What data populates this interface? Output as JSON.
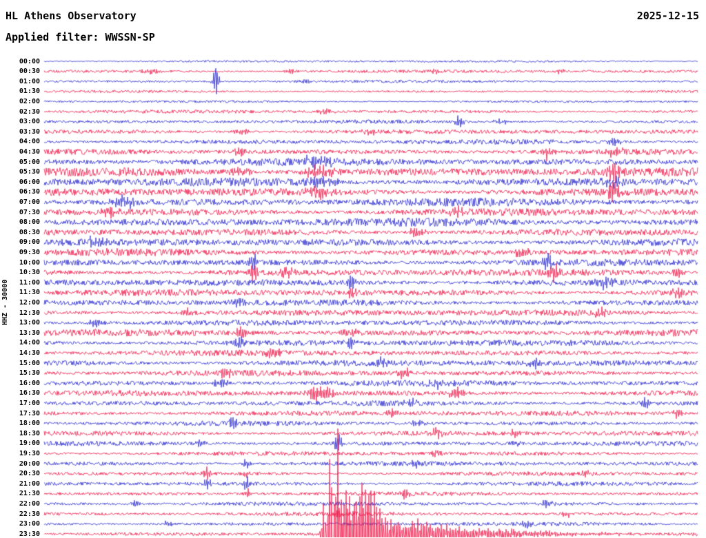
{
  "header": {
    "title": "HL Athens Observatory",
    "date": "2025-12-15",
    "filter": "Applied filter: WWSSN-SP"
  },
  "y_axis_label": "HHZ - 30000",
  "chart_data": {
    "type": "line",
    "subtype": "helicorder-seismogram",
    "channel": "HHZ",
    "scale": "30000",
    "row_interval_minutes": 30,
    "grid": false,
    "legend": "none",
    "background": "#ffffff",
    "colors": {
      "blue": "#2727cf",
      "red": "#ef1548"
    },
    "notes": "48 alternating blue/red half-hour traces; calibration spike on 01:00 trace near 26% width; large clipped earthquake with decaying coda on 23:30 trace starting near 43% width",
    "traces": [
      {
        "time": "00:00",
        "color": "blue",
        "noise": 1.8,
        "e": []
      },
      {
        "time": "00:30",
        "color": "red",
        "noise": 2.6,
        "e": [
          {
            "x": 0.165,
            "a": 5,
            "w": 0.01
          },
          {
            "x": 0.38,
            "a": 5,
            "w": 0.008
          },
          {
            "x": 0.6,
            "a": 4,
            "w": 0.008
          },
          {
            "x": 0.79,
            "a": 4,
            "w": 0.006
          }
        ]
      },
      {
        "time": "01:00",
        "color": "blue",
        "noise": 2.2,
        "e": [
          {
            "x": 0.263,
            "a": 42,
            "w": 0.003
          },
          {
            "x": 0.4,
            "a": 4,
            "w": 0.01
          }
        ]
      },
      {
        "time": "01:30",
        "color": "red",
        "noise": 2.0,
        "e": []
      },
      {
        "time": "02:00",
        "color": "blue",
        "noise": 2.0,
        "e": []
      },
      {
        "time": "02:30",
        "color": "red",
        "noise": 2.8,
        "e": [
          {
            "x": 0.43,
            "a": 5,
            "w": 0.01
          }
        ]
      },
      {
        "time": "03:00",
        "color": "blue",
        "noise": 3.0,
        "e": [
          {
            "x": 0.635,
            "a": 13,
            "w": 0.004
          },
          {
            "x": 0.7,
            "a": 4,
            "w": 0.01
          }
        ]
      },
      {
        "time": "03:30",
        "color": "red",
        "noise": 3.6,
        "e": [
          {
            "x": 0.3,
            "a": 6,
            "w": 0.01
          },
          {
            "x": 0.5,
            "a": 5,
            "w": 0.01
          }
        ]
      },
      {
        "time": "04:00",
        "color": "blue",
        "noise": 4.0,
        "e": [
          {
            "x": 0.87,
            "a": 6,
            "w": 0.008
          }
        ]
      },
      {
        "time": "04:30",
        "color": "red",
        "noise": 4.5,
        "e": [
          {
            "x": 0.3,
            "a": 8,
            "w": 0.01
          },
          {
            "x": 0.77,
            "a": 12,
            "w": 0.006
          },
          {
            "x": 0.87,
            "a": 8,
            "w": 0.01
          }
        ]
      },
      {
        "time": "05:00",
        "color": "blue",
        "noise": 6.0,
        "e": [
          {
            "x": 0.42,
            "a": 8,
            "w": 0.02
          }
        ]
      },
      {
        "time": "05:30",
        "color": "red",
        "noise": 7.0,
        "e": [
          {
            "x": 0.3,
            "a": 10,
            "w": 0.01
          },
          {
            "x": 0.42,
            "a": 12,
            "w": 0.015
          },
          {
            "x": 0.87,
            "a": 16,
            "w": 0.008
          }
        ]
      },
      {
        "time": "06:00",
        "color": "blue",
        "noise": 7.0,
        "e": [
          {
            "x": 0.42,
            "a": 10,
            "w": 0.02
          },
          {
            "x": 0.87,
            "a": 10,
            "w": 0.01
          }
        ]
      },
      {
        "time": "06:30",
        "color": "red",
        "noise": 6.5,
        "e": [
          {
            "x": 0.42,
            "a": 14,
            "w": 0.01
          },
          {
            "x": 0.87,
            "a": 20,
            "w": 0.006
          }
        ]
      },
      {
        "time": "07:00",
        "color": "blue",
        "noise": 6.5,
        "e": [
          {
            "x": 0.12,
            "a": 10,
            "w": 0.015
          }
        ]
      },
      {
        "time": "07:30",
        "color": "red",
        "noise": 6.0,
        "e": [
          {
            "x": 0.1,
            "a": 8,
            "w": 0.01
          },
          {
            "x": 0.63,
            "a": 8,
            "w": 0.01
          }
        ]
      },
      {
        "time": "08:00",
        "color": "blue",
        "noise": 6.5,
        "e": []
      },
      {
        "time": "08:30",
        "color": "red",
        "noise": 5.5,
        "e": [
          {
            "x": 0.57,
            "a": 8,
            "w": 0.01
          }
        ]
      },
      {
        "time": "09:00",
        "color": "blue",
        "noise": 6.0,
        "e": [
          {
            "x": 0.08,
            "a": 8,
            "w": 0.01
          }
        ]
      },
      {
        "time": "09:30",
        "color": "red",
        "noise": 5.5,
        "e": [
          {
            "x": 0.1,
            "a": 8,
            "w": 0.008
          },
          {
            "x": 0.73,
            "a": 10,
            "w": 0.008
          }
        ]
      },
      {
        "time": "10:00",
        "color": "blue",
        "noise": 5.5,
        "e": [
          {
            "x": 0.32,
            "a": 12,
            "w": 0.006
          },
          {
            "x": 0.77,
            "a": 14,
            "w": 0.006
          }
        ]
      },
      {
        "time": "10:30",
        "color": "red",
        "noise": 5.5,
        "e": [
          {
            "x": 0.32,
            "a": 16,
            "w": 0.005
          },
          {
            "x": 0.37,
            "a": 10,
            "w": 0.008
          },
          {
            "x": 0.78,
            "a": 12,
            "w": 0.008
          },
          {
            "x": 0.97,
            "a": 10,
            "w": 0.006
          }
        ]
      },
      {
        "time": "11:00",
        "color": "blue",
        "noise": 5.5,
        "e": [
          {
            "x": 0.47,
            "a": 14,
            "w": 0.004
          },
          {
            "x": 0.86,
            "a": 8,
            "w": 0.01
          }
        ]
      },
      {
        "time": "11:30",
        "color": "red",
        "noise": 5.5,
        "e": [
          {
            "x": 0.47,
            "a": 12,
            "w": 0.005
          },
          {
            "x": 0.97,
            "a": 14,
            "w": 0.005
          }
        ]
      },
      {
        "time": "12:00",
        "color": "blue",
        "noise": 5.0,
        "e": [
          {
            "x": 0.3,
            "a": 8,
            "w": 0.008
          }
        ]
      },
      {
        "time": "12:30",
        "color": "red",
        "noise": 5.0,
        "e": [
          {
            "x": 0.22,
            "a": 8,
            "w": 0.008
          },
          {
            "x": 0.85,
            "a": 10,
            "w": 0.006
          }
        ]
      },
      {
        "time": "13:00",
        "color": "blue",
        "noise": 4.8,
        "e": [
          {
            "x": 0.08,
            "a": 8,
            "w": 0.008
          }
        ]
      },
      {
        "time": "13:30",
        "color": "red",
        "noise": 5.5,
        "e": [
          {
            "x": 0.3,
            "a": 12,
            "w": 0.006
          },
          {
            "x": 0.47,
            "a": 8,
            "w": 0.01
          }
        ]
      },
      {
        "time": "14:00",
        "color": "blue",
        "noise": 5.0,
        "e": [
          {
            "x": 0.3,
            "a": 10,
            "w": 0.006
          },
          {
            "x": 0.47,
            "a": 12,
            "w": 0.005
          }
        ]
      },
      {
        "time": "14:30",
        "color": "red",
        "noise": 4.8,
        "e": [
          {
            "x": 0.35,
            "a": 8,
            "w": 0.008
          }
        ]
      },
      {
        "time": "15:00",
        "color": "blue",
        "noise": 5.0,
        "e": [
          {
            "x": 0.52,
            "a": 10,
            "w": 0.006
          },
          {
            "x": 0.75,
            "a": 8,
            "w": 0.008
          }
        ]
      },
      {
        "time": "15:30",
        "color": "red",
        "noise": 4.6,
        "e": [
          {
            "x": 0.28,
            "a": 10,
            "w": 0.006
          },
          {
            "x": 0.55,
            "a": 8,
            "w": 0.008
          }
        ]
      },
      {
        "time": "16:00",
        "color": "blue",
        "noise": 4.6,
        "e": [
          {
            "x": 0.27,
            "a": 8,
            "w": 0.008
          },
          {
            "x": 0.6,
            "a": 8,
            "w": 0.008
          }
        ]
      },
      {
        "time": "16:30",
        "color": "red",
        "noise": 4.6,
        "e": [
          {
            "x": 0.415,
            "a": 16,
            "w": 0.008
          },
          {
            "x": 0.43,
            "a": 12,
            "w": 0.012
          },
          {
            "x": 0.63,
            "a": 8,
            "w": 0.008
          }
        ]
      },
      {
        "time": "17:00",
        "color": "blue",
        "noise": 4.2,
        "e": [
          {
            "x": 0.56,
            "a": 8,
            "w": 0.006
          },
          {
            "x": 0.92,
            "a": 8,
            "w": 0.006
          }
        ]
      },
      {
        "time": "17:30",
        "color": "red",
        "noise": 4.2,
        "e": [
          {
            "x": 0.53,
            "a": 8,
            "w": 0.006
          },
          {
            "x": 0.97,
            "a": 10,
            "w": 0.005
          }
        ]
      },
      {
        "time": "18:00",
        "color": "blue",
        "noise": 3.8,
        "e": [
          {
            "x": 0.29,
            "a": 10,
            "w": 0.005
          },
          {
            "x": 0.57,
            "a": 6,
            "w": 0.008
          }
        ]
      },
      {
        "time": "18:30",
        "color": "red",
        "noise": 4.0,
        "e": [
          {
            "x": 0.6,
            "a": 8,
            "w": 0.006
          },
          {
            "x": 0.72,
            "a": 6,
            "w": 0.008
          }
        ]
      },
      {
        "time": "19:00",
        "color": "blue",
        "noise": 3.8,
        "e": [
          {
            "x": 0.24,
            "a": 8,
            "w": 0.005
          },
          {
            "x": 0.45,
            "a": 18,
            "w": 0.004
          },
          {
            "x": 0.72,
            "a": 8,
            "w": 0.006
          }
        ]
      },
      {
        "time": "19:30",
        "color": "red",
        "noise": 3.6,
        "e": [
          {
            "x": 0.6,
            "a": 6,
            "w": 0.006
          }
        ]
      },
      {
        "time": "20:00",
        "color": "blue",
        "noise": 3.6,
        "e": [
          {
            "x": 0.31,
            "a": 8,
            "w": 0.005
          },
          {
            "x": 0.57,
            "a": 8,
            "w": 0.005
          }
        ]
      },
      {
        "time": "20:30",
        "color": "red",
        "noise": 3.4,
        "e": [
          {
            "x": 0.25,
            "a": 10,
            "w": 0.004
          },
          {
            "x": 0.31,
            "a": 8,
            "w": 0.005
          },
          {
            "x": 0.83,
            "a": 8,
            "w": 0.005
          }
        ]
      },
      {
        "time": "21:00",
        "color": "blue",
        "noise": 3.4,
        "e": [
          {
            "x": 0.25,
            "a": 8,
            "w": 0.004
          },
          {
            "x": 0.31,
            "a": 14,
            "w": 0.004
          }
        ]
      },
      {
        "time": "21:30",
        "color": "red",
        "noise": 3.2,
        "e": [
          {
            "x": 0.31,
            "a": 8,
            "w": 0.005
          },
          {
            "x": 0.55,
            "a": 6,
            "w": 0.006
          }
        ]
      },
      {
        "time": "22:00",
        "color": "blue",
        "noise": 3.2,
        "e": [
          {
            "x": 0.14,
            "a": 8,
            "w": 0.004
          },
          {
            "x": 0.77,
            "a": 6,
            "w": 0.006
          }
        ]
      },
      {
        "time": "22:30",
        "color": "red",
        "noise": 3.2,
        "e": [
          {
            "x": 0.45,
            "a": 6,
            "w": 0.006
          },
          {
            "x": 0.8,
            "a": 8,
            "w": 0.004
          }
        ]
      },
      {
        "time": "23:00",
        "color": "blue",
        "noise": 3.0,
        "e": [
          {
            "x": 0.19,
            "a": 8,
            "w": 0.004
          },
          {
            "x": 0.74,
            "a": 8,
            "w": 0.005
          }
        ]
      },
      {
        "time": "23:30",
        "color": "red",
        "noise": 3.0,
        "e": [
          {
            "x": 0.428,
            "a": 60,
            "w": 0.003
          },
          {
            "x": 0.438,
            "a": 150,
            "w": 0.004
          },
          {
            "x": 0.449,
            "a": 165,
            "w": 0.005
          },
          {
            "x": 0.462,
            "a": 130,
            "w": 0.006
          },
          {
            "x": 0.478,
            "a": 90,
            "w": 0.008
          },
          {
            "x": 0.5,
            "a": 55,
            "w": 0.012
          },
          {
            "x": 0.53,
            "a": 32,
            "w": 0.015
          },
          {
            "x": 0.5,
            "a": 40,
            "w": 0.01,
            "t": 0.13
          }
        ]
      }
    ]
  }
}
